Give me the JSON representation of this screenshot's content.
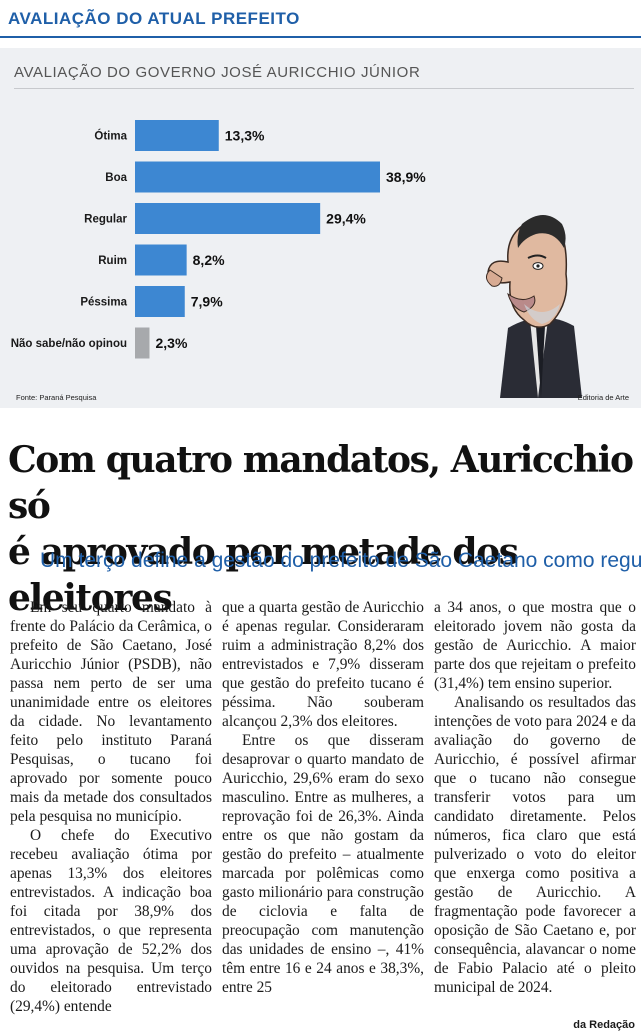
{
  "section": {
    "title": "AVALIAÇÃO DO ATUAL PREFEITO"
  },
  "graphic": {
    "source": "Fonte: Paraná Pesquisa",
    "credit": "Editoria de Arte"
  },
  "colors": {
    "accent": "#1f5fa8",
    "bar": "#3d87d2",
    "bar_neutral": "#a7a9ac"
  },
  "chart_data": {
    "type": "bar",
    "orientation": "horizontal",
    "title": "AVALIAÇÃO DO GOVERNO JOSÉ AURICCHIO JÚNIOR",
    "categories": [
      "Ótima",
      "Boa",
      "Regular",
      "Ruim",
      "Péssima",
      "Não sabe/não opinou"
    ],
    "values": [
      13.3,
      38.9,
      29.4,
      8.2,
      7.9,
      2.3
    ],
    "labels": [
      "13,3%",
      "38,9%",
      "29,4%",
      "8,2%",
      "7,9%",
      "2,3%"
    ],
    "unit": "%",
    "xlim": [
      0,
      38.9
    ]
  },
  "article": {
    "headline_line1": "Com quatro mandatos, Auricchio só",
    "headline_line2": "é aprovado por metade dos eleitores",
    "deck": "Um terço define a gestão do prefeito de São Caetano como regular",
    "col1_p1": "Em seu quarto mandato à frente do Palácio da Cerâmica, o prefeito de São Caetano, José Auricchio Júnior (PSDB), não passa nem perto de ser uma unanimidade entre os eleitores da cidade. No levantamento feito pelo instituto Paraná Pesquisas, o tucano foi aprovado por somente pouco mais da metade dos consultados pela pesquisa no município.",
    "col1_p2": "O chefe do Executivo recebeu avaliação ótima por apenas 13,3% dos eleitores entrevistados. A indicação boa foi citada por 38,9% dos entrevistados, o que representa uma aprovação de 52,2% dos ouvidos na pesquisa. Um terço do eleitorado entrevistado (29,4%) entende",
    "col2_p1": "que a quarta gestão de Auricchio é apenas regular. Consideraram ruim a administração 8,2% dos entrevistados e 7,9% disseram que gestão do prefeito tucano é péssima. Não souberam alcançou 2,3% dos eleitores.",
    "col2_p2": "Entre os que disseram desaprovar o quarto mandato de Auricchio, 29,6% eram do sexo masculino. Entre as mulheres, a reprovação foi de 26,3%. Ainda entre os que não gostam da gestão do prefeito – atualmente marcada por polêmicas como gasto milionário para construção de ciclovia e falta de preocupação com manutenção das unidades de ensino –, 41% têm entre 16 e 24 anos e 38,3%, entre 25",
    "col3_p1": "a 34 anos, o que mostra que o eleitorado jovem não gosta da gestão de Auricchio. A maior parte dos que rejeitam o prefeito (31,4%) tem ensino superior.",
    "col3_p2": "Analisando os resultados das intenções de voto para 2024 e da avaliação do governo de Auricchio, é possível afirmar que o tucano não consegue transferir votos para um candidato diretamente. Pelos números, fica claro que está pulverizado o voto do eleitor que enxerga como positiva a gestão de Auricchio. A fragmentação pode favorecer a oposição de São Caetano e, por consequência, alavancar o nome de Fabio Palacio até o pleito municipal de 2024.",
    "byline": "da Redação"
  }
}
